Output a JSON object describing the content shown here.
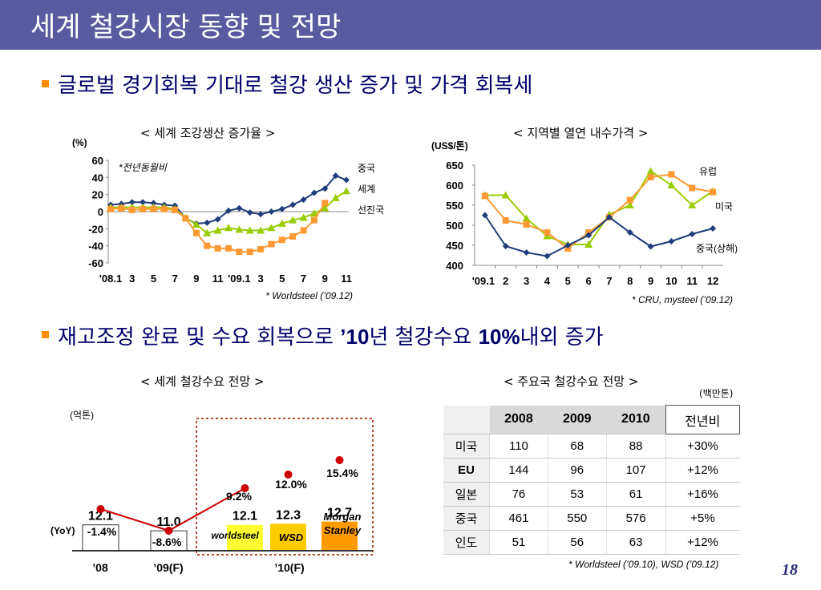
{
  "title": "세계 철강시장 동향 및 전망",
  "headings": {
    "h1": "글로벌 경기회복 기대로 철강 생산 증가 및 가격 회복세",
    "h2_a": "재고조정 완료 및 수요 회복으로 ",
    "h2_b": "’10",
    "h2_c": "년 철강수요 ",
    "h2_d": "10%",
    "h2_e": "내외 증가"
  },
  "page_number": "18",
  "colors": {
    "title_bar": "#5a5aa0",
    "china": "#1f3d7a",
    "world": "#99cc00",
    "advanced": "#ff9933",
    "yellow": "#ffff33",
    "orange": "#ffcc00",
    "orange_dark": "#ff9900",
    "marker": "#cc0000"
  },
  "chart_data": [
    {
      "type": "line",
      "title": "< 세계 조강생산 증가율  >",
      "ylabel": "(%)",
      "annotation": "*전년동월비",
      "source": "* Worldsteel (’09.12)",
      "ylim": [
        -60,
        60
      ],
      "yticks": [
        "60",
        "40",
        "20",
        "0",
        "-20",
        "-40",
        "-60"
      ],
      "xtick_labels": [
        "'08.1",
        "3",
        "5",
        "7",
        "9",
        "11",
        "'09.1",
        "3",
        "5",
        "7",
        "9",
        "11"
      ],
      "series": [
        {
          "name": "중국",
          "color": "#1f3d7a",
          "marker": "diamond",
          "values": [
            8,
            9,
            11,
            11,
            10,
            8,
            7,
            -8,
            -14,
            -13,
            -9,
            1,
            4,
            -1,
            -3,
            0,
            3,
            8,
            14,
            22,
            27,
            42,
            37
          ]
        },
        {
          "name": "세계",
          "color": "#99cc00",
          "marker": "triangle",
          "values": [
            5,
            5,
            5,
            5,
            5,
            5,
            3,
            -7,
            -15,
            -25,
            -22,
            -19,
            -21,
            -22,
            -22,
            -19,
            -14,
            -10,
            -7,
            -2,
            4,
            16,
            24
          ]
        },
        {
          "name": "선진국",
          "color": "#ff9933",
          "marker": "square",
          "values": [
            3,
            4,
            2,
            3,
            3,
            3,
            2,
            -8,
            -25,
            -40,
            -43,
            -43,
            -47,
            -47,
            -44,
            -38,
            -33,
            -29,
            -22,
            -10,
            10
          ]
        }
      ]
    },
    {
      "type": "line",
      "title": "< 지역별 열연 내수가격 >",
      "ylabel": "(US$/톤)",
      "source": "* CRU, mysteel (’09.12)",
      "ylim": [
        400,
        650
      ],
      "yticks": [
        "650",
        "600",
        "550",
        "500",
        "450",
        "400"
      ],
      "xtick_labels": [
        "'09.1",
        "2",
        "3",
        "4",
        "5",
        "6",
        "7",
        "8",
        "9",
        "10",
        "11",
        "12"
      ],
      "series": [
        {
          "name": "유럽",
          "color": "#99cc00",
          "marker": "triangle",
          "values": [
            575,
            575,
            517,
            473,
            452,
            452,
            527,
            550,
            635,
            600,
            550,
            585
          ]
        },
        {
          "name": "미국",
          "color": "#ff9933",
          "marker": "square",
          "values": [
            573,
            512,
            502,
            482,
            442,
            482,
            520,
            563,
            620,
            627,
            593,
            583
          ]
        },
        {
          "name": "중국(상해)",
          "color": "#1f3d7a",
          "marker": "diamond",
          "values": [
            525,
            448,
            432,
            423,
            450,
            475,
            520,
            482,
            447,
            460,
            478,
            492
          ]
        }
      ]
    },
    {
      "type": "bar",
      "title": "< 세계 철강수요 전망 >",
      "ylabel": "(억톤)",
      "yoy_label": "(YoY)",
      "categories": [
        "’08",
        "’09(F)",
        "’10(F)"
      ],
      "bars": [
        {
          "value": 12.1,
          "label": "12.1",
          "yoy": "-1.4%",
          "name": "",
          "fill": "#ffffff"
        },
        {
          "value": 11.0,
          "label": "11.0",
          "yoy": "-8.6%",
          "name": "",
          "fill": "#ffffff"
        },
        {
          "value": 12.1,
          "label": "12.1",
          "yoy": "9.2%",
          "name": "worldsteel",
          "fill": "#ffff33"
        },
        {
          "value": 12.3,
          "label": "12.3",
          "yoy": "12.0%",
          "name": "WSD",
          "fill": "#ffcc00"
        },
        {
          "value": 12.7,
          "label": "12.7",
          "yoy": "15.4%",
          "name": "Morgan Stanley",
          "fill": "#ff9900"
        }
      ]
    }
  ],
  "table": {
    "title": "< 주요국 철강수요 전망 >",
    "unit": "(백만톤)",
    "headers": [
      "",
      "2008",
      "2009",
      "2010",
      "전년비"
    ],
    "rows": [
      [
        "미국",
        "110",
        "68",
        "88",
        "+30%"
      ],
      [
        "EU",
        "144",
        "96",
        "107",
        "+12%"
      ],
      [
        "일본",
        "76",
        "53",
        "61",
        "+16%"
      ],
      [
        "중국",
        "461",
        "550",
        "576",
        "+5%"
      ],
      [
        "인도",
        "51",
        "56",
        "63",
        "+12%"
      ]
    ],
    "source": "* Worldsteel (’09.10), WSD (’09.12)"
  }
}
